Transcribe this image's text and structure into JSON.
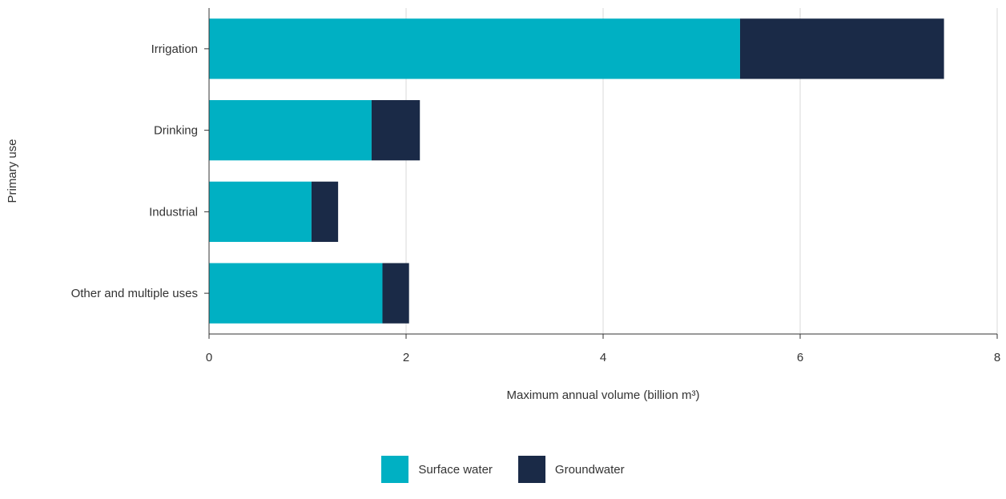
{
  "chart_data": {
    "type": "bar",
    "orientation": "horizontal",
    "stacked": true,
    "title": "",
    "xlabel": "Maximum annual volume (billion m³)",
    "ylabel": "Primary use",
    "xlim": [
      0,
      8
    ],
    "xticks": [
      0,
      2,
      4,
      6,
      8
    ],
    "grid": true,
    "legend_position": "bottom",
    "categories": [
      "Irrigation",
      "Drinking",
      "Industrial",
      "Other and multiple uses"
    ],
    "series": [
      {
        "name": "Surface water",
        "color": "#00b0c3",
        "values": [
          5.39,
          1.65,
          1.04,
          1.76
        ]
      },
      {
        "name": "Groundwater",
        "color": "#1a2a47",
        "values": [
          2.07,
          0.49,
          0.27,
          0.27
        ]
      }
    ]
  }
}
